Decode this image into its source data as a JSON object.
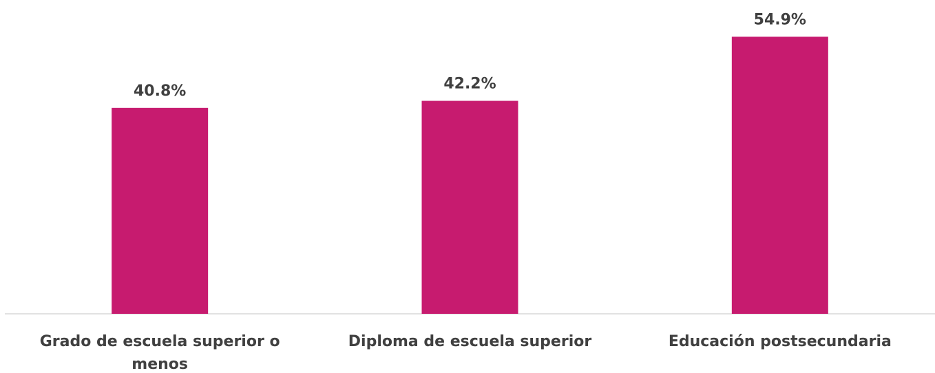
{
  "chart_data": {
    "type": "bar",
    "categories": [
      "Grado de escuela superior o menos",
      "Diploma de escuela superior",
      "Educación postsecundaria"
    ],
    "values": [
      40.8,
      42.2,
      54.9
    ],
    "value_labels": [
      "40.8%",
      "42.2%",
      "54.9%"
    ],
    "color": "#c71b6f",
    "ylim": [
      0,
      60
    ]
  }
}
